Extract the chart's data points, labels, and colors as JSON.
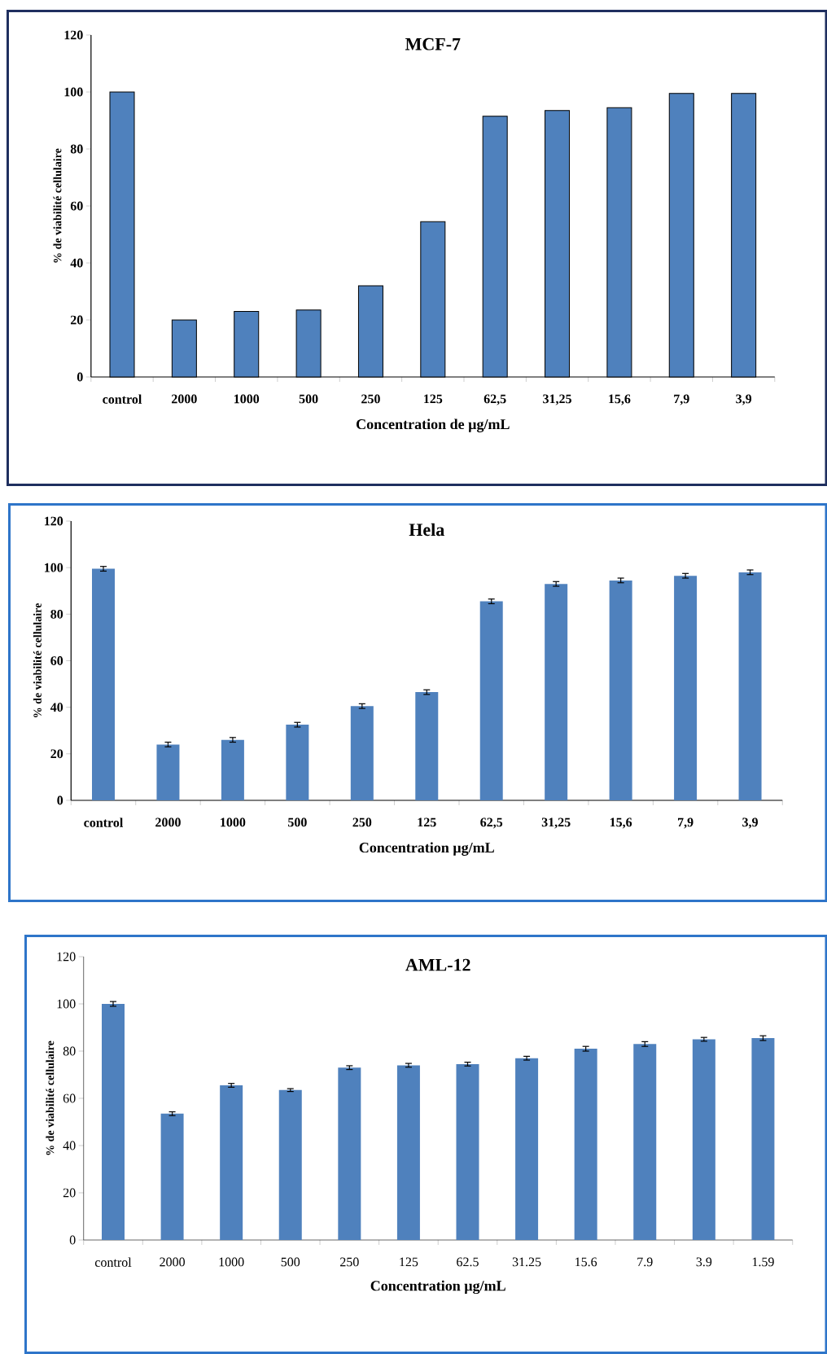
{
  "chart_data": [
    {
      "type": "bar",
      "title": "MCF-7",
      "xlabel": "Concentration de µg/mL",
      "ylabel": "% de viabilité cellulaire",
      "categories": [
        "control",
        "2000",
        "1000",
        "500",
        "250",
        "125",
        "62,5",
        "31,25",
        "15,6",
        "7,9",
        "3,9"
      ],
      "values": [
        100,
        20,
        23,
        23.5,
        32,
        54.5,
        91.5,
        93.5,
        94.5,
        99.5,
        99.5
      ],
      "color": "#4f81bd",
      "ylim": [
        0,
        120
      ],
      "yticks": [
        0,
        20,
        40,
        60,
        80,
        100,
        120
      ]
    },
    {
      "type": "bar",
      "title": "Hela",
      "xlabel": "Concentration  µg/mL",
      "ylabel": "% de viabilité cellulaire",
      "categories": [
        "control",
        "2000",
        "1000",
        "500",
        "250",
        "125",
        "62,5",
        "31,25",
        "15,6",
        "7,9",
        "3,9"
      ],
      "values": [
        99.5,
        24,
        26,
        32.5,
        40.5,
        46.5,
        85.5,
        93,
        94.5,
        96.5,
        98
      ],
      "color": "#4f81bd",
      "errors": [
        1,
        1,
        1,
        1,
        1,
        1,
        1,
        1,
        1,
        1,
        1
      ],
      "ylim": [
        0,
        120
      ],
      "yticks": [
        0,
        20,
        40,
        60,
        80,
        100,
        120
      ]
    },
    {
      "type": "bar",
      "title": "AML-12",
      "xlabel": "Concentration µg/mL",
      "ylabel": "% de viabilité cellulaire",
      "categories": [
        "control",
        "2000",
        "1000",
        "500",
        "250",
        "125",
        "62.5",
        "31.25",
        "15.6",
        "7.9",
        "3.9",
        "1.59"
      ],
      "values": [
        100,
        53.5,
        65.5,
        63.5,
        73,
        74,
        74.5,
        77,
        81,
        83,
        85,
        85.5
      ],
      "color": "#4f81bd",
      "errors": [
        1,
        0.8,
        0.8,
        0.6,
        0.8,
        0.8,
        0.8,
        0.8,
        1,
        1,
        0.8,
        1
      ],
      "ylim": [
        0,
        120
      ],
      "yticks": [
        0,
        20,
        40,
        60,
        80,
        100,
        120
      ]
    }
  ]
}
